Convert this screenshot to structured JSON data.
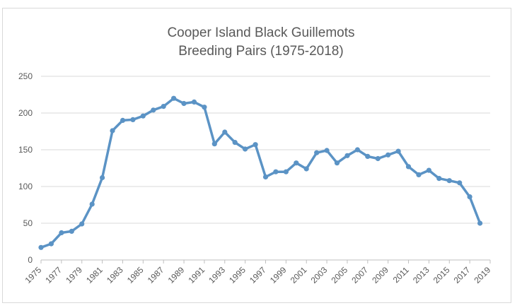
{
  "chart_data": {
    "type": "line",
    "title": "Cooper Island Black Guillemots",
    "subtitle": "Breeding Pairs (1975-2018)",
    "xlabel": "",
    "ylabel": "",
    "xlim": [
      1975,
      2019
    ],
    "ylim": [
      0,
      250
    ],
    "y_ticks": [
      0,
      50,
      100,
      150,
      200,
      250
    ],
    "x_ticks": [
      1975,
      1977,
      1979,
      1981,
      1983,
      1985,
      1987,
      1989,
      1991,
      1993,
      1995,
      1997,
      1999,
      2001,
      2003,
      2005,
      2007,
      2009,
      2011,
      2013,
      2015,
      2017,
      2019
    ],
    "grid": true,
    "legend": "none",
    "color": "#5b93c5",
    "series": [
      {
        "x": [
          1975,
          1976,
          1977,
          1978,
          1979,
          1980,
          1981,
          1982,
          1983,
          1984,
          1985,
          1986,
          1987,
          1988,
          1989,
          1990,
          1991,
          1992,
          1993,
          1994,
          1995,
          1996,
          1997,
          1998,
          1999,
          2000,
          2001,
          2002,
          2003,
          2004,
          2005,
          2006,
          2007,
          2008,
          2009,
          2010,
          2011,
          2012,
          2013,
          2014,
          2015,
          2016,
          2017,
          2018
        ],
        "values": [
          17,
          22,
          37,
          39,
          49,
          76,
          112,
          176,
          190,
          191,
          196,
          204,
          209,
          220,
          213,
          215,
          208,
          158,
          174,
          160,
          151,
          157,
          113,
          120,
          120,
          132,
          124,
          146,
          149,
          132,
          142,
          150,
          141,
          138,
          143,
          148,
          127,
          116,
          122,
          111,
          108,
          105,
          86,
          50
        ]
      }
    ]
  }
}
